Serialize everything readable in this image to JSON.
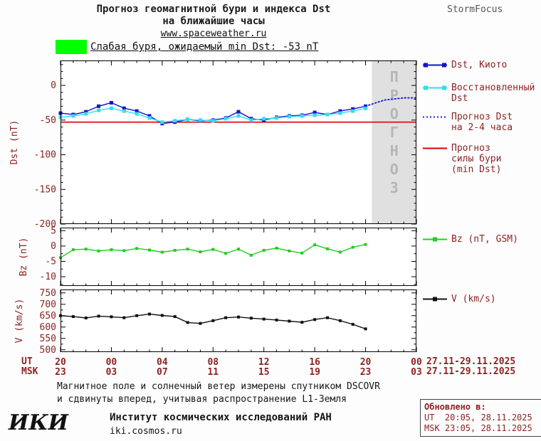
{
  "header": {
    "title_line1": "Прогноз геомагнитной бури и индекса Dst",
    "title_line2": "на ближайшие часы",
    "website": "www.spaceweather.ru",
    "brand": "StormFocus",
    "alert_text": "Слабая буря, ожидаемый min Dst: -53 nT"
  },
  "colors": {
    "kyoto": "#1414cc",
    "restored": "#33ddee",
    "forecast": "#2222dd",
    "threshold": "#dd0000",
    "bz": "#22cc22",
    "v": "#111111",
    "accent_text": "#8b2323",
    "alert_swatch": "#00ff00",
    "forecast_region": "#e0e0e0",
    "watermark": "#b5b5b5"
  },
  "legend": {
    "kyoto": "Dst, Киото",
    "restored_1": "Восстановленный",
    "restored_2": "Dst",
    "forecast_1": "Прогноз Dst",
    "forecast_2": "на 2-4 часа",
    "storm_1": "Прогноз",
    "storm_2": "силы бури",
    "storm_3": "(min Dst)",
    "bz": "Bz (nT, GSM)",
    "v": "V (km/s)"
  },
  "axes": {
    "ut_label": "UT",
    "msk_label": "MSK",
    "ut_date": "27.11-29.11.2025",
    "msk_date": "27.11-29.11.2025"
  },
  "forecast_watermark": "ПРОГНОЗ",
  "footer": {
    "note_line1": "Магнитное поле и солнечный ветер измерены спутником DSCOVR",
    "note_line2": "и сдвинуты вперед, учитывая распространение L1-Земля",
    "logo": "ИКИ",
    "institute": "Институт космических исследований РАН",
    "institute_site": "iki.cosmos.ru"
  },
  "updated": {
    "title": "Обновлено в:",
    "ut": "UT  20:05, 28.11.2025",
    "msk": "MSK 23:05, 28.11.2025"
  },
  "chart_data": [
    {
      "id": "dst",
      "type": "line",
      "ylabel": "Dst (nT)",
      "ylim": [
        -200,
        36
      ],
      "yticks": [
        0,
        -50,
        -100,
        -150,
        -200
      ],
      "xlim_hours": [
        0,
        28
      ],
      "xtick_hours": [
        0,
        4,
        8,
        12,
        16,
        20,
        24,
        28
      ],
      "xtick_labels_ut": [
        "20",
        "00",
        "04",
        "08",
        "12",
        "16",
        "20",
        "00"
      ],
      "xtick_labels_msk": [
        "23",
        "03",
        "07",
        "11",
        "15",
        "19",
        "23",
        "03"
      ],
      "x_minor_step_hours": 1,
      "x_hours": [
        0,
        1,
        2,
        3,
        4,
        5,
        6,
        7,
        8,
        9,
        10,
        11,
        12,
        13,
        14,
        15,
        16,
        17,
        18,
        19,
        20,
        21,
        22,
        23,
        24
      ],
      "storm_threshold_nt": -53,
      "forecast_region_hours": [
        24.5,
        28
      ],
      "series": [
        {
          "id": "kyoto",
          "name": "Dst, Киото",
          "color": "#1414cc",
          "values": [
            -40,
            -42,
            -38,
            -30,
            -25,
            -33,
            -37,
            -44,
            -55,
            -53,
            -49,
            -51,
            -50,
            -47,
            -38,
            -48,
            -50,
            -46,
            -44,
            -43,
            -39,
            -42,
            -37,
            -34,
            -30
          ]
        },
        {
          "id": "restored",
          "name": "Восстановленный Dst",
          "color": "#33ddee",
          "values": [
            -46,
            -44,
            -41,
            -36,
            -33,
            -37,
            -41,
            -47,
            -53,
            -51,
            -49,
            -50,
            -51,
            -48,
            -44,
            -50,
            -48,
            -47,
            -45,
            -44,
            -43,
            -42,
            -40,
            -37,
            -33
          ]
        },
        {
          "id": "forecast",
          "name": "Прогноз Dst на 2-4 часа",
          "color": "#2222dd",
          "style": "dotted",
          "x": [
            24,
            25.5,
            27,
            28
          ],
          "values": [
            -30,
            -21,
            -18,
            -18
          ]
        }
      ]
    },
    {
      "id": "bz",
      "type": "line",
      "ylabel": "Bz (nT)",
      "ylim": [
        -13,
        6
      ],
      "yticks": [
        5,
        0,
        -5,
        -10
      ],
      "x_hours": [
        0,
        1,
        2,
        3,
        4,
        5,
        6,
        7,
        8,
        9,
        10,
        11,
        12,
        13,
        14,
        15,
        16,
        17,
        18,
        19,
        20,
        21,
        22,
        23,
        24
      ],
      "series": [
        {
          "id": "bz",
          "name": "Bz (nT, GSM)",
          "color": "#22cc22",
          "values": [
            -3.8,
            -1.2,
            -1.0,
            -1.6,
            -1.2,
            -1.5,
            -0.8,
            -1.3,
            -2.0,
            -1.4,
            -1.0,
            -1.9,
            -1.1,
            -2.4,
            -1.0,
            -3.0,
            -1.4,
            -0.7,
            -1.6,
            -2.3,
            0.4,
            -0.9,
            -2.0,
            -0.4,
            0.5
          ]
        }
      ]
    },
    {
      "id": "v",
      "type": "line",
      "ylabel": "V (km/s)",
      "ylim": [
        490,
        765
      ],
      "yticks": [
        750,
        700,
        650,
        600,
        550,
        500
      ],
      "x_hours": [
        0,
        1,
        2,
        3,
        4,
        5,
        6,
        7,
        8,
        9,
        10,
        11,
        12,
        13,
        14,
        15,
        16,
        17,
        18,
        19,
        20,
        21,
        22,
        23,
        24
      ],
      "series": [
        {
          "id": "v",
          "name": "V (km/s)",
          "color": "#111111",
          "values": [
            650,
            646,
            640,
            648,
            645,
            641,
            650,
            657,
            651,
            646,
            620,
            616,
            628,
            641,
            644,
            639,
            635,
            631,
            626,
            621,
            633,
            641,
            628,
            612,
            592
          ]
        }
      ]
    }
  ]
}
